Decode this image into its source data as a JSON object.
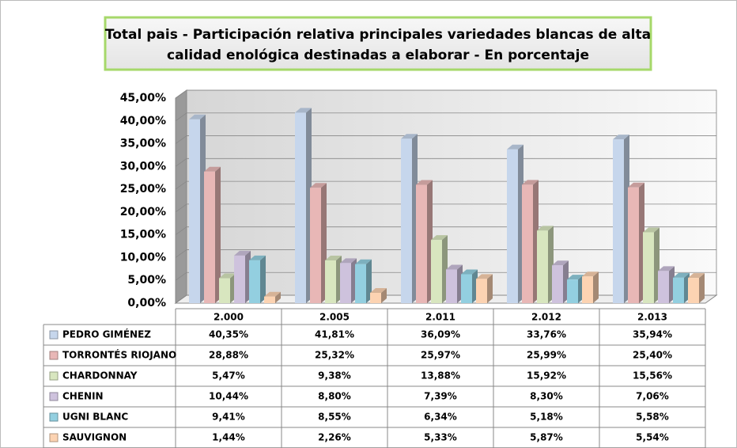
{
  "chart_data": {
    "type": "bar",
    "title": "Total pais  - Participación relativa principales variedades blancas de alta calidad enológica destinadas a elaborar - En porcentaje",
    "categories": [
      "2.000",
      "2.005",
      "2.011",
      "2.012",
      "2.013"
    ],
    "series": [
      {
        "name": "PEDRO GIMÉNEZ",
        "color": "#c6d6ec",
        "values": [
          40.35,
          41.81,
          36.09,
          33.76,
          35.94
        ],
        "value_labels": [
          "40,35%",
          "41,81%",
          "36,09%",
          "33,76%",
          "35,94%"
        ]
      },
      {
        "name": "TORRONTÉS RIOJANO",
        "color": "#e8b7b6",
        "values": [
          28.88,
          25.32,
          25.97,
          25.99,
          25.4
        ],
        "value_labels": [
          "28,88%",
          "25,32%",
          "25,97%",
          "25,99%",
          "25,40%"
        ]
      },
      {
        "name": "CHARDONNAY",
        "color": "#d8e6bf",
        "values": [
          5.47,
          9.38,
          13.88,
          15.92,
          15.56
        ],
        "value_labels": [
          "5,47%",
          "9,38%",
          "13,88%",
          "15,92%",
          "15,56%"
        ]
      },
      {
        "name": "CHENIN",
        "color": "#cec2dd",
        "values": [
          10.44,
          8.8,
          7.39,
          8.3,
          7.06
        ],
        "value_labels": [
          "10,44%",
          "8,80%",
          "7,39%",
          "8,30%",
          "7,06%"
        ]
      },
      {
        "name": "UGNI BLANC",
        "color": "#93cfe0",
        "values": [
          9.41,
          8.55,
          6.34,
          5.18,
          5.58
        ],
        "value_labels": [
          "9,41%",
          "8,55%",
          "6,34%",
          "5,18%",
          "5,58%"
        ]
      },
      {
        "name": "SAUVIGNON",
        "color": "#fcd3b2",
        "values": [
          1.44,
          2.26,
          5.33,
          5.87,
          5.54
        ],
        "value_labels": [
          "1,44%",
          "2,26%",
          "5,33%",
          "5,87%",
          "5,54%"
        ]
      }
    ],
    "ylim": [
      0,
      45
    ],
    "yticks": [
      {
        "value": 0,
        "label": "0,00%"
      },
      {
        "value": 5,
        "label": "5,00%"
      },
      {
        "value": 10,
        "label": "10,00%"
      },
      {
        "value": 15,
        "label": "15,00%"
      },
      {
        "value": 20,
        "label": "20,00%"
      },
      {
        "value": 25,
        "label": "25,00%"
      },
      {
        "value": 30,
        "label": "30,00%"
      },
      {
        "value": 35,
        "label": "35,00%"
      },
      {
        "value": 40,
        "label": "40,00%"
      },
      {
        "value": 45,
        "label": "45,00%"
      }
    ],
    "grid": true
  }
}
